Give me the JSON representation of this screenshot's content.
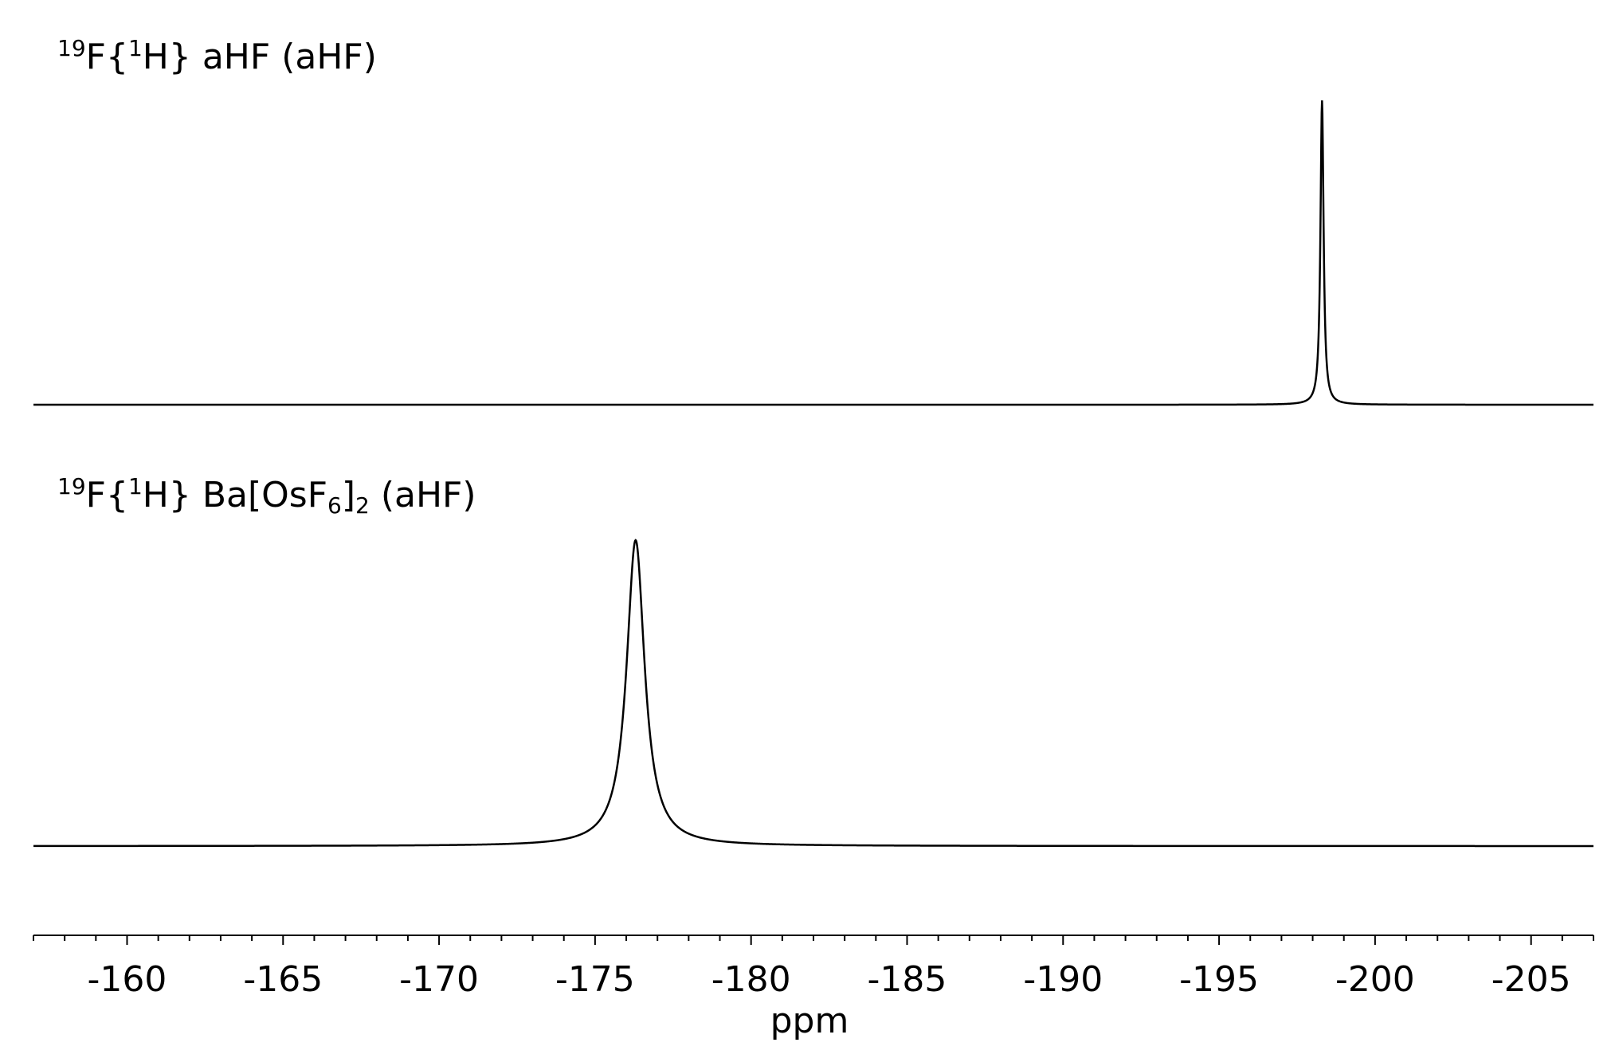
{
  "chart_data": {
    "type": "line",
    "xlabel": "ppm",
    "x_reversed": true,
    "xlim": [
      -157,
      -207
    ],
    "x_ticks_major": [
      -160,
      -165,
      -170,
      -175,
      -180,
      -185,
      -190,
      -195,
      -200,
      -205
    ],
    "x_ticks_minor_step": 1,
    "grid": false,
    "legend": "none",
    "series": [
      {
        "label_main": "F{",
        "label_sup1": "19",
        "label_sup2": "1",
        "label_rest": "H} aHF (aHF)",
        "peak_ppm": -198.3,
        "peak_width_ppm": 0.06,
        "peak_height": 1.0
      },
      {
        "label_main": "F{",
        "label_sup1": "19",
        "label_sup2": "1",
        "label_mid": "H} Ba[OsF",
        "label_sub1": "6",
        "label_mid2": "]",
        "label_sub2": "2",
        "label_rest": " (aHF)",
        "peak_ppm": -176.3,
        "peak_width_ppm": 0.35,
        "peak_height": 1.0
      }
    ]
  }
}
